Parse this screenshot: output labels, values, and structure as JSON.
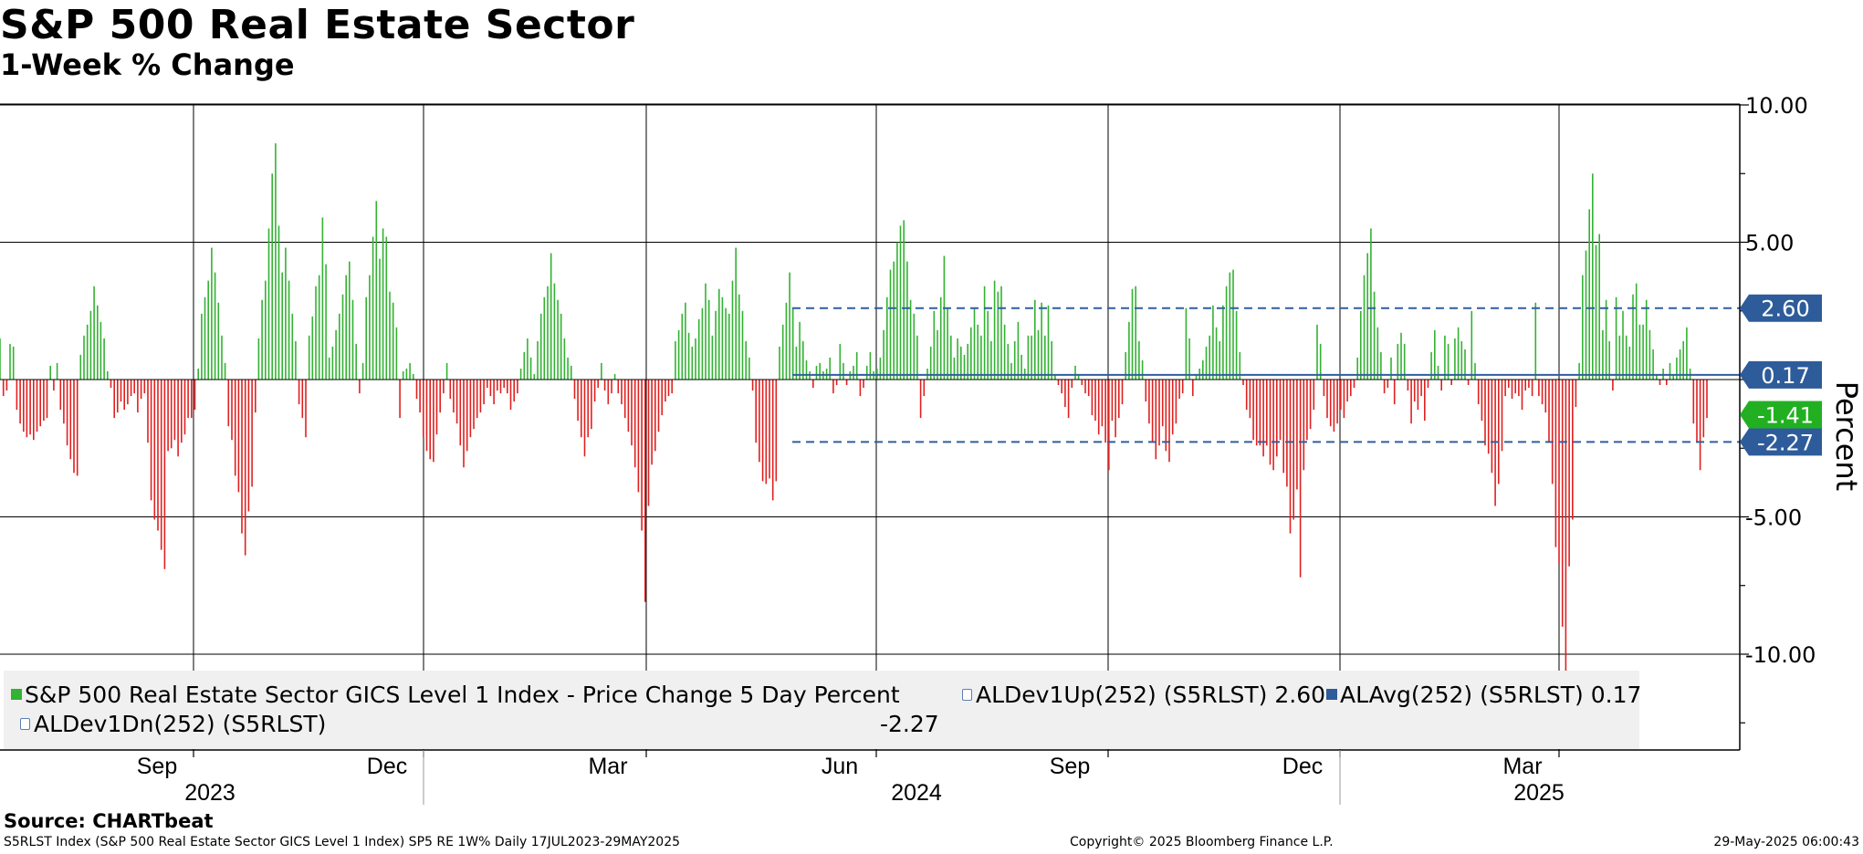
{
  "title": "S&P 500 Real Estate Sector",
  "subtitle": "1-Week % Change",
  "chart_data": {
    "type": "bar",
    "x_start": "2023-07-17",
    "x_end": "2025-05-29",
    "frequency": "Daily",
    "ylabel": "Percent",
    "ylim": [
      -12.5,
      10.5
    ],
    "yticks": [
      "10.00",
      "5.00",
      "-5.00",
      "-10.00"
    ],
    "ytick_values": [
      10,
      5,
      -5,
      -10
    ],
    "x_month_labels": [
      "Sep",
      "Dec",
      "Mar",
      "Jun",
      "Sep",
      "Dec",
      "Mar"
    ],
    "x_year_labels": [
      "2023",
      "2024",
      "2025"
    ],
    "positive_color": "#33b233",
    "negative_color": "#e02020",
    "dev_line_color": "#2f5f9f",
    "avg_line_color": "#2f5f9f",
    "reference_lines": [
      {
        "name": "ALDev1Up(252) (S5RLST)",
        "value": 2.6,
        "label": "2.60",
        "style": "dashed"
      },
      {
        "name": "ALAvg(252) (S5RLST)",
        "value": 0.17,
        "label": "0.17",
        "style": "solid"
      },
      {
        "name": "ALDev1Dn(252) (S5RLST)",
        "value": -2.27,
        "label": "-2.27",
        "style": "dashed"
      }
    ],
    "last_value": {
      "value": -1.41,
      "label": "-1.41",
      "color": "#22b022"
    },
    "series": [
      {
        "name": "S&P 500 Real Estate Sector GICS Level 1 Index - Price Change 5 Day Percent",
        "values": [
          1.5,
          -0.6,
          -0.4,
          1.3,
          1.2,
          -1.1,
          -1.6,
          -1.9,
          -2.1,
          -2.0,
          -2.2,
          -1.9,
          -1.7,
          -1.5,
          -1.4,
          0.5,
          -0.4,
          0.6,
          -1.1,
          -1.6,
          -2.4,
          -2.9,
          -3.4,
          -3.5,
          0.9,
          1.6,
          2.0,
          2.5,
          3.4,
          2.7,
          2.1,
          1.5,
          0.3,
          -0.3,
          -1.4,
          -1.2,
          -0.8,
          -1.1,
          -0.9,
          -0.6,
          -0.5,
          -1.2,
          -0.7,
          -0.5,
          -2.3,
          -4.4,
          -5.1,
          -5.5,
          -6.2,
          -6.9,
          -2.6,
          -2.5,
          -2.2,
          -2.8,
          -2.3,
          -2.0,
          -1.4,
          -1.4,
          -1.1,
          0.4,
          2.4,
          3.0,
          3.6,
          4.8,
          3.9,
          2.8,
          1.6,
          0.6,
          -1.7,
          -2.2,
          -3.5,
          -4.1,
          -5.6,
          -6.4,
          -4.8,
          -3.9,
          -1.2,
          1.5,
          2.9,
          3.6,
          5.5,
          7.5,
          8.6,
          5.6,
          3.9,
          4.8,
          3.6,
          2.4,
          1.4,
          -0.9,
          -1.4,
          -2.1,
          1.6,
          2.3,
          3.4,
          3.8,
          5.9,
          4.2,
          0.8,
          1.2,
          1.8,
          2.4,
          3.1,
          3.8,
          4.3,
          2.9,
          1.3,
          -0.5,
          0.6,
          3.0,
          3.8,
          5.2,
          6.5,
          4.4,
          5.5,
          5.2,
          3.2,
          2.8,
          1.9,
          -1.4,
          0.3,
          0.4,
          0.6,
          0.2,
          -0.7,
          -1.2,
          -2.1,
          -2.6,
          -2.9,
          -3.0,
          -2.0,
          -1.2,
          -0.5,
          0.6,
          -0.7,
          -1.2,
          -1.6,
          -2.4,
          -3.2,
          -2.6,
          -2.1,
          -1.8,
          -1.4,
          -1.2,
          -0.9,
          -0.3,
          -0.6,
          -0.9,
          -0.4,
          -0.5,
          -0.3,
          -0.5,
          -1.1,
          -0.8,
          -0.5,
          0.4,
          1.0,
          1.5,
          0.8,
          0.2,
          1.4,
          2.4,
          3.0,
          3.4,
          4.6,
          3.5,
          2.9,
          2.4,
          1.5,
          0.8,
          0.5,
          -0.7,
          -1.5,
          -2.1,
          -2.8,
          -2.1,
          -1.8,
          -0.8,
          -0.3,
          0.6,
          -0.4,
          -0.9,
          -0.5,
          0.2,
          -0.5,
          -0.9,
          -1.4,
          -1.9,
          -2.4,
          -3.2,
          -4.1,
          -5.5,
          -8.1,
          -4.6,
          -3.1,
          -2.6,
          -1.9,
          -1.3,
          -0.8,
          -0.6,
          -0.5,
          1.4,
          1.8,
          2.4,
          2.8,
          1.7,
          1.2,
          1.5,
          2.2,
          2.6,
          3.5,
          2.9,
          1.6,
          2.5,
          3.3,
          3.0,
          2.6,
          2.4,
          3.6,
          4.8,
          3.1,
          2.5,
          1.4,
          0.8,
          -0.4,
          -2.3,
          -3.0,
          -3.7,
          -3.8,
          -3.6,
          -4.4,
          -3.7,
          1.2,
          2.0,
          2.8,
          3.9,
          2.6,
          1.2,
          2.1,
          1.4,
          0.7,
          0.3,
          -0.3,
          0.5,
          0.6,
          0.3,
          0.4,
          0.8,
          -0.5,
          -0.2,
          1.3,
          0.6,
          -0.2,
          0.3,
          0.5,
          1.0,
          -0.6,
          -0.3,
          0.5,
          1.0,
          0.3,
          0.4,
          0.8,
          1.8,
          3.0,
          4.0,
          4.3,
          5.0,
          5.6,
          5.8,
          4.3,
          2.9,
          2.4,
          1.6,
          -1.4,
          -0.6,
          0.4,
          1.2,
          2.5,
          1.8,
          3.0,
          4.5,
          2.6,
          1.6,
          0.8,
          1.5,
          1.2,
          0.9,
          1.3,
          1.9,
          2.6,
          2.0,
          1.6,
          3.4,
          2.5,
          1.4,
          3.6,
          3.2,
          3.4,
          2.0,
          1.3,
          0.6,
          1.4,
          2.1,
          0.9,
          0.4,
          1.6,
          1.6,
          2.9,
          1.8,
          2.8,
          1.6,
          2.7,
          1.4,
          0.2,
          -0.2,
          -0.5,
          -1.0,
          -1.4,
          -0.3,
          0.5,
          0.2,
          -0.2,
          -0.5,
          -0.6,
          -1.3,
          -1.5,
          -2.0,
          -1.7,
          -2.3,
          -3.3,
          -1.5,
          -2.1,
          -1.4,
          -0.9,
          1.0,
          2.1,
          3.3,
          3.4,
          1.4,
          0.7,
          -0.8,
          -1.6,
          -2.3,
          -2.9,
          -2.4,
          -1.7,
          -2.6,
          -3.0,
          -2.0,
          -1.6,
          -0.7,
          -0.5,
          2.6,
          1.5,
          -0.6,
          0.2,
          0.4,
          0.7,
          1.2,
          1.6,
          2.7,
          1.9,
          1.4,
          2.7,
          3.4,
          3.9,
          4.0,
          2.5,
          1.0,
          -0.2,
          -1.1,
          -1.4,
          -2.2,
          -2.4,
          -2.4,
          -2.8,
          -2.4,
          -3.1,
          -3.3,
          -2.8,
          -2.2,
          -3.4,
          -3.9,
          -5.6,
          -5.1,
          -4.0,
          -7.2,
          -3.3,
          -2.2,
          -1.8,
          -1.1,
          2.0,
          1.3,
          -0.6,
          -1.4,
          -1.7,
          -1.9,
          -1.6,
          -1.1,
          -1.4,
          -0.8,
          -0.6,
          -0.3,
          0.8,
          2.5,
          3.8,
          4.6,
          5.5,
          3.2,
          1.9,
          1.0,
          -0.5,
          -0.3,
          0.8,
          -0.9,
          1.3,
          1.7,
          1.3,
          -0.4,
          -1.6,
          -0.8,
          -1.1,
          -0.6,
          -1.5,
          -0.3,
          1.0,
          1.8,
          0.5,
          -0.4,
          1.6,
          1.3,
          -0.2,
          1.5,
          1.9,
          1.4,
          1.1,
          -0.2,
          2.5,
          0.6,
          -0.9,
          -1.5,
          -2.4,
          -2.7,
          -3.4,
          -4.6,
          -3.8,
          -2.6,
          -0.6,
          -0.3,
          -0.7,
          -0.5,
          -0.6,
          -1.1,
          -0.4,
          -0.3,
          -0.6,
          2.8,
          -0.6,
          -0.9,
          -1.2,
          -2.3,
          -3.8,
          -6.1,
          -6.7,
          -9.0,
          -10.6,
          -6.8,
          -5.1,
          -1.0,
          0.6,
          3.8,
          4.7,
          6.2,
          7.5,
          4.9,
          5.3,
          1.8,
          2.9,
          1.4,
          -0.4,
          3.0,
          1.6,
          2.5,
          1.6,
          1.2,
          3.1,
          3.5,
          2.0,
          2.0,
          2.9,
          1.8,
          1.1,
          0.2,
          -0.2,
          0.4,
          -0.2,
          0.6,
          0.2,
          0.8,
          1.1,
          1.4,
          1.9,
          0.4,
          -1.6,
          -2.3,
          -3.3,
          -2.1,
          -1.4
        ]
      }
    ]
  },
  "legend": {
    "series_label": "S&P 500 Real Estate Sector GICS Level 1 Index - Price Change 5 Day Percent",
    "dev_up_label": "ALDev1Up(252) (S5RLST) 2.60",
    "avg_label": "ALAvg(252) (S5RLST) 0.17",
    "dev_down_label": "ALDev1Dn(252) (S5RLST)",
    "dev_down_value": "-2.27"
  },
  "footer": {
    "source": "Source: CHARTbeat",
    "index_info": "S5RLST Index (S&P 500 Real Estate Sector GICS Level 1 Index) SP5 RE 1W%  Daily 17JUL2023-29MAY2025",
    "copyright": "Copyright© 2025 Bloomberg Finance L.P.",
    "timestamp": "29-May-2025 06:00:43"
  },
  "colors": {
    "legend_bg": "#f0f0f0",
    "label_box_blue": "#2e5c9a",
    "label_box_green": "#22b022"
  }
}
